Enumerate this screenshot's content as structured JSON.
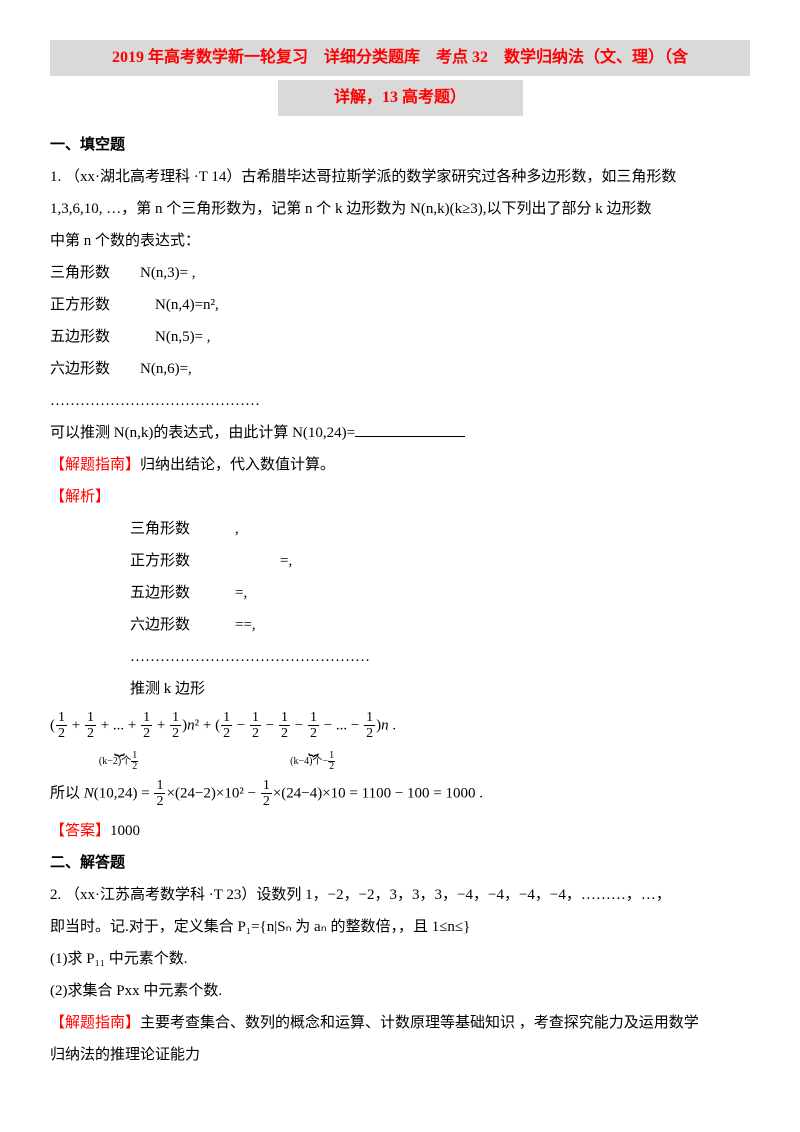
{
  "title_line1": "2019 年高考数学新一轮复习　详细分类题库　考点 32　数学归纳法（文、理）（含",
  "title_line2": "详解，13 高考题）",
  "section1_heading": "一、填空题",
  "q1_line1": "1. （xx·湖北高考理科 ·T 14）古希腊毕达哥拉斯学派的数学家研究过各种多边形数，如三角形数",
  "q1_line2": "1,3,6,10, …，第 n 个三角形数为，记第 n 个 k 边形数为 N(n,k)(k≥3),以下列出了部分 k 边形数",
  "q1_line3": "中第 n 个数的表达式：",
  "poly_tri": "三角形数　　N(n,3)= ,",
  "poly_sq": "正方形数　　　N(n,4)=n²,",
  "poly_pent": "五边形数　　　N(n,5)= ,",
  "poly_hex": "六边形数　　N(n,6)=,",
  "dots": "……………………………………",
  "infer_prefix": "可以推测 N(n,k)的表达式，由此计算 N(10,24)=",
  "hint_label": "【解题指南】",
  "hint_text": "归纳出结论，代入数值计算。",
  "analysis_label": "【解析】",
  "analysis_tri": "三角形数　　　,",
  "analysis_sq": "正方形数　　　　　　=,",
  "analysis_pent": "五边形数　　　=,",
  "analysis_hex": "六边形数　　　==,",
  "analysis_dots": "…………………………………………",
  "analysis_infer": "推测 k 边形",
  "formula": {
    "group1_terms": [
      "1",
      "2",
      "1",
      "2",
      "1",
      "2",
      "1",
      "2"
    ],
    "group1_label_prefix": "(k−2)个",
    "mid_text": "n² +",
    "group2_terms": [
      "1",
      "2",
      "1",
      "2",
      "1",
      "2",
      "1",
      "2",
      "1",
      "2"
    ],
    "group2_label_prefix": "(k−4)个−",
    "tail": "n ."
  },
  "result_prefix": "所以 ",
  "result_formula_lhs": "N(10,24) = ",
  "result_formula_rhs": "×(24−2)×10² − ",
  "result_formula_tail": "×(24−4)×10 = 1100 − 100 = 1000 .",
  "answer_label": "【答案】",
  "answer_text": "1000",
  "section2_heading": "二、解答题",
  "q2_line1": "2. （xx·江苏高考数学科 ·T 23）设数列 1，−2，−2，3，3，3，−4，−4，−4，−4，………，…，",
  "q2_line2": "即当时。记.对于，定义集合 P₁={n|Sₙ 为 aₙ 的整数倍，，且 1≤n≤}",
  "q2_sub1": "(1)求 P₁₁ 中元素个数.",
  "q2_sub2": "(2)求集合 Pxx 中元素个数.",
  "q2_hint_text": "主要考查集合、数列的概念和运算、计数原理等基础知识 ，考查探究能力及运用数学",
  "q2_hint_text2": "归纳法的推理论证能力",
  "colors": {
    "red": "#ff0000",
    "highlight_bg": "#d9d9d9",
    "text": "#000000",
    "bg": "#ffffff"
  }
}
